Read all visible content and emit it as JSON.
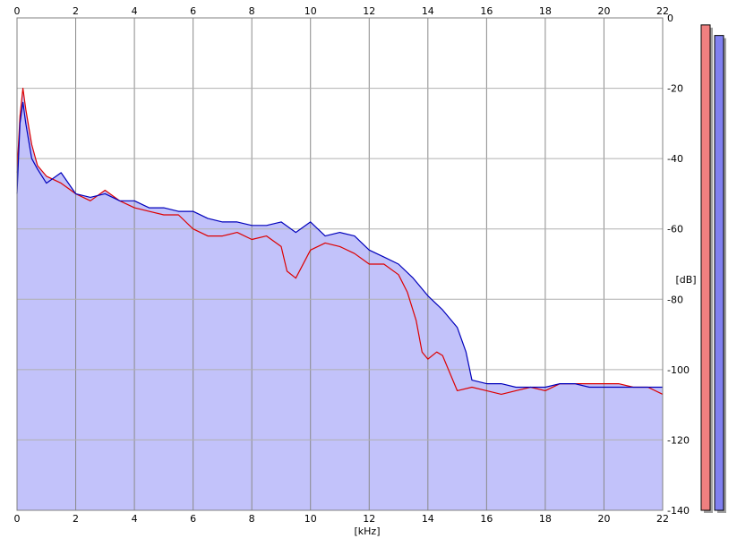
{
  "chart_data": {
    "type": "line",
    "xlabel": "[kHz]",
    "ylabel": "[dB]",
    "xlim": [
      0,
      22
    ],
    "ylim": [
      -140,
      0
    ],
    "x_ticks": [
      0,
      2,
      4,
      6,
      8,
      10,
      12,
      14,
      16,
      18,
      20,
      22
    ],
    "x_tick_labels": [
      "0",
      "2",
      "4",
      "6",
      "8",
      "10",
      "12",
      "14",
      "16",
      "18",
      "20",
      "22"
    ],
    "y_ticks": [
      0,
      -20,
      -40,
      -60,
      -80,
      -100,
      -120,
      -140
    ],
    "y_tick_labels": [
      "0",
      "-20",
      "-40",
      "-60",
      "-80",
      "-100",
      "-120",
      "-140"
    ],
    "grid": true,
    "series": [
      {
        "color": "#dd0000",
        "x": [
          0,
          0.1,
          0.2,
          0.3,
          0.5,
          0.7,
          1.0,
          1.5,
          2.0,
          2.5,
          3.0,
          3.5,
          4.0,
          4.5,
          5.0,
          5.5,
          6.0,
          6.5,
          7.0,
          7.5,
          8.0,
          8.5,
          9.0,
          9.2,
          9.5,
          10.0,
          10.5,
          11.0,
          11.5,
          12.0,
          12.5,
          13.0,
          13.3,
          13.6,
          13.8,
          14.0,
          14.3,
          14.5,
          15.0,
          15.5,
          16.0,
          16.5,
          17.0,
          17.5,
          18.0,
          18.5,
          19.0,
          19.5,
          20.0,
          20.5,
          21.0,
          21.5,
          22.0
        ],
        "y": [
          -44,
          -28,
          -20,
          -26,
          -36,
          -42,
          -45,
          -47,
          -50,
          -52,
          -49,
          -52,
          -54,
          -55,
          -56,
          -56,
          -60,
          -62,
          -62,
          -61,
          -63,
          -62,
          -65,
          -72,
          -74,
          -66,
          -64,
          -65,
          -67,
          -70,
          -70,
          -73,
          -78,
          -86,
          -95,
          -97,
          -95,
          -96,
          -106,
          -105,
          -106,
          -107,
          -106,
          -105,
          -106,
          -104,
          -104,
          -104,
          -104,
          -104,
          -105,
          -105,
          -107
        ]
      },
      {
        "color": "#0000bb",
        "x": [
          0,
          0.1,
          0.2,
          0.3,
          0.5,
          0.7,
          1.0,
          1.5,
          2.0,
          2.5,
          3.0,
          3.5,
          4.0,
          4.5,
          5.0,
          5.5,
          6.0,
          6.5,
          7.0,
          7.5,
          8.0,
          8.5,
          9.0,
          9.5,
          10.0,
          10.5,
          11.0,
          11.5,
          12.0,
          12.5,
          13.0,
          13.5,
          14.0,
          14.5,
          15.0,
          15.3,
          15.5,
          16.0,
          16.5,
          17.0,
          17.5,
          18.0,
          18.5,
          19.0,
          19.5,
          20.0,
          20.5,
          21.0,
          21.5,
          22.0
        ],
        "y": [
          -50,
          -30,
          -24,
          -30,
          -40,
          -43,
          -47,
          -44,
          -50,
          -51,
          -50,
          -52,
          -52,
          -54,
          -54,
          -55,
          -55,
          -57,
          -58,
          -58,
          -59,
          -59,
          -58,
          -61,
          -58,
          -62,
          -61,
          -62,
          -66,
          -68,
          -70,
          -74,
          -79,
          -83,
          -88,
          -95,
          -103,
          -104,
          -104,
          -105,
          -105,
          -105,
          -104,
          -104,
          -105,
          -105,
          -105,
          -105,
          -105,
          -105
        ]
      }
    ],
    "level_meters": [
      {
        "color": "#f08080",
        "level_db": -2
      },
      {
        "color": "#8080f0",
        "level_db": -5
      }
    ]
  }
}
